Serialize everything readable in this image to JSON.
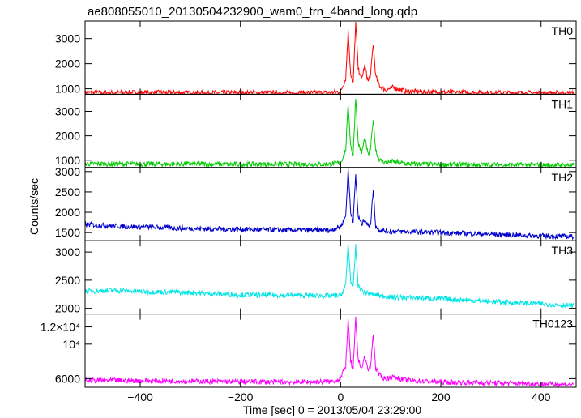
{
  "title": "ae808055010_20130504232900_wam0_trn_4band_long.qdp",
  "xlabel": "Time [sec] 0 = 2013/05/04 23:29:00",
  "ylabel": "Counts/sec",
  "chart_data": {
    "type": "line",
    "title": "ae808055010_20130504232900_wam0_trn_4band_long.qdp",
    "xlabel": "Time [sec] 0 = 2013/05/04 23:29:00",
    "ylabel": "Counts/sec",
    "xlim": [
      -510,
      470
    ],
    "xticks": [
      -400,
      -200,
      0,
      200,
      400
    ],
    "xtick_labels": [
      "−400",
      "−200",
      "0",
      "200",
      "400"
    ],
    "grid": false,
    "legend": "none",
    "panels": [
      {
        "name": "TH0",
        "color": "#ff0000",
        "ylim": [
          780,
          3700
        ],
        "yticks": [
          1000,
          2000,
          3000
        ],
        "ytick_labels": [
          "1000",
          "2000",
          "3000"
        ],
        "points": [
          [
            -510,
            840
          ],
          [
            -400,
            850
          ],
          [
            -300,
            840
          ],
          [
            -200,
            840
          ],
          [
            -100,
            830
          ],
          [
            -20,
            840
          ],
          [
            0,
            900
          ],
          [
            10,
            1400
          ],
          [
            15,
            3300
          ],
          [
            20,
            1600
          ],
          [
            25,
            1200
          ],
          [
            30,
            3650
          ],
          [
            35,
            1800
          ],
          [
            42,
            1400
          ],
          [
            48,
            1900
          ],
          [
            55,
            1300
          ],
          [
            60,
            1600
          ],
          [
            65,
            2800
          ],
          [
            70,
            1500
          ],
          [
            78,
            1100
          ],
          [
            90,
            950
          ],
          [
            105,
            1050
          ],
          [
            130,
            900
          ],
          [
            200,
            860
          ],
          [
            300,
            840
          ],
          [
            400,
            830
          ],
          [
            465,
            820
          ]
        ]
      },
      {
        "name": "TH1",
        "color": "#00cc00",
        "ylim": [
          700,
          3700
        ],
        "yticks": [
          1000,
          2000,
          3000
        ],
        "ytick_labels": [
          "1000",
          "2000",
          "3000"
        ],
        "points": [
          [
            -510,
            850
          ],
          [
            -400,
            840
          ],
          [
            -300,
            840
          ],
          [
            -200,
            830
          ],
          [
            -100,
            830
          ],
          [
            -20,
            840
          ],
          [
            0,
            900
          ],
          [
            10,
            1400
          ],
          [
            15,
            3300
          ],
          [
            20,
            1600
          ],
          [
            25,
            1200
          ],
          [
            30,
            3600
          ],
          [
            35,
            1700
          ],
          [
            42,
            1300
          ],
          [
            48,
            1900
          ],
          [
            55,
            1200
          ],
          [
            60,
            1500
          ],
          [
            65,
            2700
          ],
          [
            70,
            1400
          ],
          [
            78,
            1000
          ],
          [
            90,
            900
          ],
          [
            105,
            950
          ],
          [
            130,
            850
          ],
          [
            200,
            820
          ],
          [
            300,
            810
          ],
          [
            400,
            800
          ],
          [
            465,
            790
          ]
        ]
      },
      {
        "name": "TH2",
        "color": "#0000cc",
        "ylim": [
          1300,
          3100
        ],
        "yticks": [
          1500,
          2000,
          2500,
          3000
        ],
        "ytick_labels": [
          "1500",
          "2000",
          "2500",
          "3000"
        ],
        "points": [
          [
            -510,
            1700
          ],
          [
            -450,
            1660
          ],
          [
            -400,
            1640
          ],
          [
            -300,
            1600
          ],
          [
            -200,
            1580
          ],
          [
            -100,
            1560
          ],
          [
            -20,
            1560
          ],
          [
            0,
            1650
          ],
          [
            10,
            1900
          ],
          [
            15,
            3050
          ],
          [
            20,
            2000
          ],
          [
            25,
            1800
          ],
          [
            30,
            2900
          ],
          [
            35,
            1900
          ],
          [
            42,
            1700
          ],
          [
            48,
            1850
          ],
          [
            55,
            1650
          ],
          [
            60,
            1750
          ],
          [
            65,
            2550
          ],
          [
            70,
            1650
          ],
          [
            80,
            1550
          ],
          [
            100,
            1530
          ],
          [
            200,
            1500
          ],
          [
            300,
            1460
          ],
          [
            400,
            1420
          ],
          [
            465,
            1400
          ]
        ]
      },
      {
        "name": "TH3",
        "color": "#00e5e5",
        "ylim": [
          1900,
          3200
        ],
        "yticks": [
          2000,
          2500,
          3000
        ],
        "ytick_labels": [
          "2000",
          "2500",
          "3000"
        ],
        "points": [
          [
            -510,
            2300
          ],
          [
            -450,
            2320
          ],
          [
            -400,
            2300
          ],
          [
            -300,
            2280
          ],
          [
            -200,
            2240
          ],
          [
            -100,
            2230
          ],
          [
            -20,
            2220
          ],
          [
            0,
            2230
          ],
          [
            10,
            2400
          ],
          [
            15,
            3150
          ],
          [
            20,
            2500
          ],
          [
            25,
            2350
          ],
          [
            30,
            3100
          ],
          [
            35,
            2400
          ],
          [
            45,
            2300
          ],
          [
            60,
            2250
          ],
          [
            100,
            2200
          ],
          [
            200,
            2170
          ],
          [
            300,
            2120
          ],
          [
            400,
            2080
          ],
          [
            465,
            2050
          ]
        ]
      },
      {
        "name": "TH0123",
        "color": "#ff00ff",
        "ylim": [
          5000,
          13500
        ],
        "yticks": [
          6000,
          10000,
          12000
        ],
        "ytick_labels": [
          "6000",
          "10⁴",
          "1.2×10⁴"
        ],
        "points": [
          [
            -510,
            5800
          ],
          [
            -400,
            5750
          ],
          [
            -300,
            5700
          ],
          [
            -200,
            5650
          ],
          [
            -100,
            5600
          ],
          [
            -20,
            5650
          ],
          [
            0,
            6000
          ],
          [
            10,
            7500
          ],
          [
            15,
            12800
          ],
          [
            20,
            8000
          ],
          [
            25,
            7000
          ],
          [
            30,
            13000
          ],
          [
            35,
            8200
          ],
          [
            42,
            7200
          ],
          [
            48,
            8500
          ],
          [
            55,
            7000
          ],
          [
            60,
            7500
          ],
          [
            65,
            11200
          ],
          [
            70,
            7200
          ],
          [
            78,
            6300
          ],
          [
            90,
            6000
          ],
          [
            105,
            6200
          ],
          [
            130,
            5800
          ],
          [
            200,
            5600
          ],
          [
            300,
            5500
          ],
          [
            400,
            5400
          ],
          [
            465,
            5300
          ]
        ]
      }
    ]
  }
}
